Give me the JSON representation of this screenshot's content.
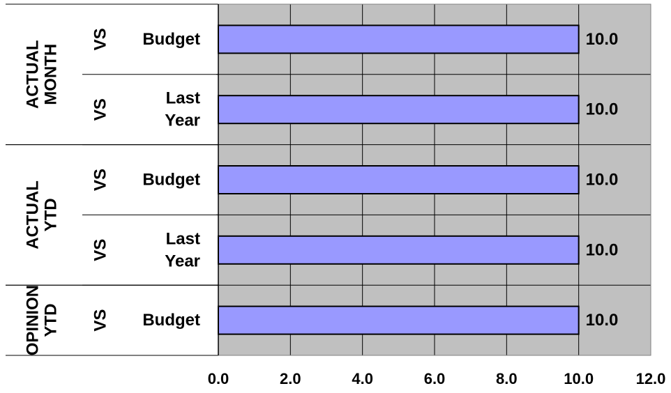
{
  "chart_data": {
    "type": "bar",
    "orientation": "horizontal",
    "groups": [
      {
        "lines": [
          "ACTUAL",
          "MONTH"
        ],
        "rows": [
          0,
          1
        ]
      },
      {
        "lines": [
          "ACTUAL",
          "YTD"
        ],
        "rows": [
          2,
          3
        ]
      },
      {
        "lines": [
          "OPINION",
          "YTD"
        ],
        "rows": [
          4
        ]
      }
    ],
    "rows": [
      {
        "vs": "VS",
        "label_lines": [
          "Budget"
        ],
        "value": 10.0,
        "value_label": "10.0"
      },
      {
        "vs": "VS",
        "label_lines": [
          "Last",
          "Year"
        ],
        "value": 10.0,
        "value_label": "10.0"
      },
      {
        "vs": "VS",
        "label_lines": [
          "Budget"
        ],
        "value": 10.0,
        "value_label": "10.0"
      },
      {
        "vs": "VS",
        "label_lines": [
          "Last",
          "Year"
        ],
        "value": 10.0,
        "value_label": "10.0"
      },
      {
        "vs": "VS",
        "label_lines": [
          "Budget"
        ],
        "value": 10.0,
        "value_label": "10.0"
      }
    ],
    "x_ticks": [
      "0.0",
      "2.0",
      "4.0",
      "6.0",
      "8.0",
      "10.0",
      "12.0"
    ],
    "xlim": [
      0,
      12
    ],
    "grid": true,
    "colors": {
      "plot_background": "#c0c0c0",
      "bar_fill": "#9999ff",
      "bar_stroke": "#000000",
      "grid": "#000000"
    }
  }
}
